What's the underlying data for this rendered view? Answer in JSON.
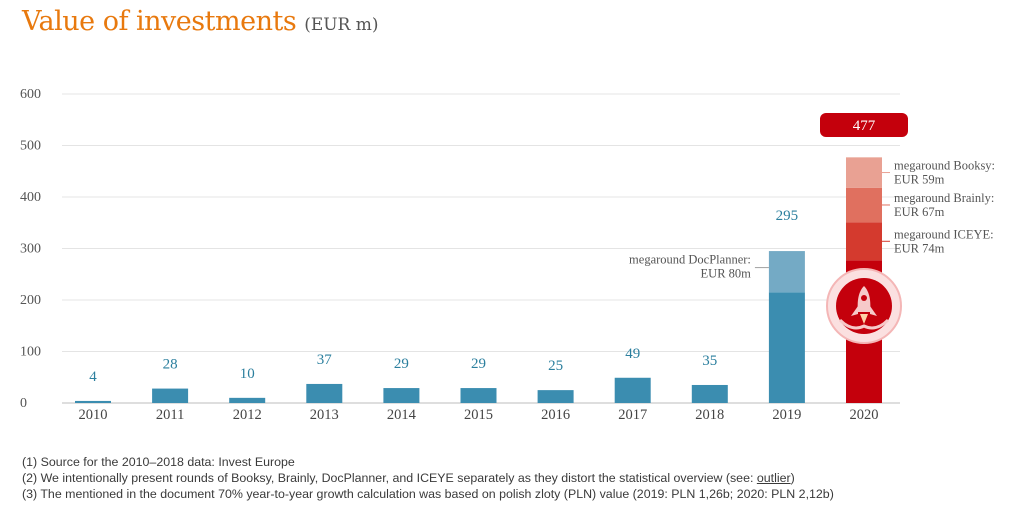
{
  "title": {
    "main": "Value of investments",
    "unit": "(EUR m)"
  },
  "colors": {
    "title": "#e8790e",
    "bar": "#3b8db0",
    "bar_light": "#74aac5",
    "value_label": "#2b7f9e",
    "bar_2020": "#c4000c",
    "booksy": "#e9a193",
    "brainly": "#e0705f",
    "iceye": "#d43a2e",
    "badge": "#c4000c"
  },
  "chart_data": {
    "type": "bar",
    "categories": [
      "2010",
      "2011",
      "2012",
      "2013",
      "2014",
      "2015",
      "2016",
      "2017",
      "2018",
      "2019",
      "2020"
    ],
    "values": [
      4,
      28,
      10,
      37,
      29,
      29,
      25,
      49,
      35,
      295,
      477
    ],
    "value_labels": [
      "4",
      "28",
      "10",
      "37",
      "29",
      "29",
      "25",
      "49",
      "35",
      "295",
      "477"
    ],
    "ylim": [
      0,
      600
    ],
    "yticks": [
      "0",
      "100",
      "200",
      "300",
      "400",
      "500",
      "600"
    ],
    "grid": true,
    "stacks": {
      "2019": [
        {
          "value": 80,
          "label_line1": "megaround DocPlanner:",
          "label_line2": "EUR 80m",
          "color": "#74aac5"
        }
      ],
      "2020": [
        {
          "value": 74,
          "label_line1": "megaround ICEYE:",
          "label_line2": "EUR 74m",
          "color": "#d43a2e"
        },
        {
          "value": 67,
          "label_line1": "megaround Brainly:",
          "label_line2": "EUR 67m",
          "color": "#e0705f"
        },
        {
          "value": 59,
          "label_line1": "megaround Booksy:",
          "label_line2": "EUR 59m",
          "color": "#e9a193"
        }
      ]
    }
  },
  "footnotes": {
    "note1": "(1) Source for the 2010–2018 data: Invest Europe",
    "note2": "(2) We intentionally present rounds of Booksy, Brainly, DocPlanner, and ICEYE separately as they distort the statistical overview (see: ",
    "note2_link": "outlier",
    "note2_end": ")",
    "note3": "(3) The mentioned in the document 70% year-to-year growth calculation was based on polish zloty (PLN) value (2019: PLN 1,26b; 2020: PLN 2,12b)"
  }
}
